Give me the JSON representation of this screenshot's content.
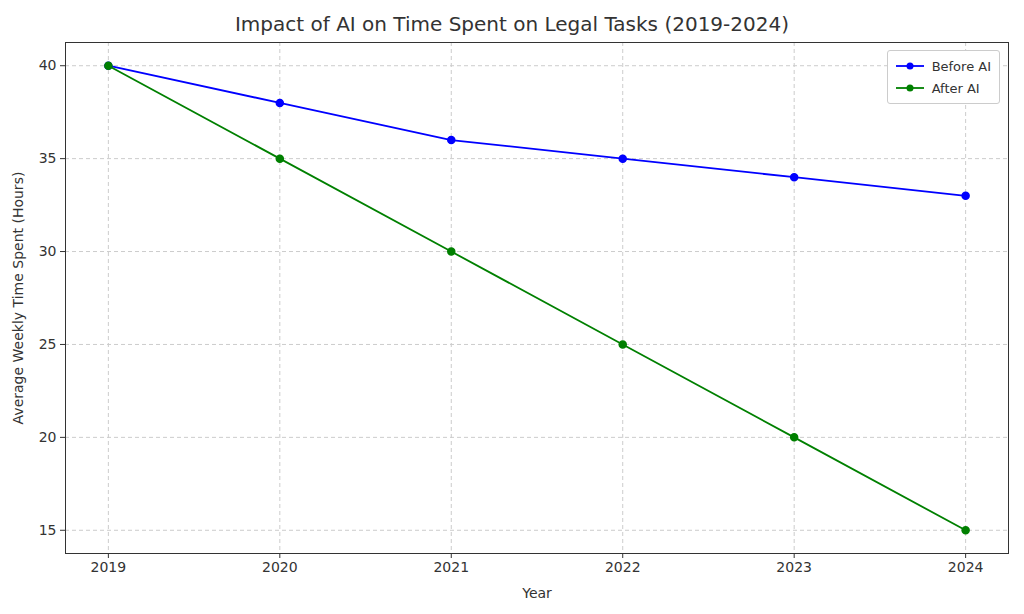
{
  "chart_data": {
    "type": "line",
    "title": "Impact of AI on Time Spent on Legal Tasks (2019-2024)",
    "x_label": "Year",
    "y_label": "Average Weekly Time Spent (Hours)",
    "x": [
      2019,
      2020,
      2021,
      2022,
      2023,
      2024
    ],
    "series": [
      {
        "name": "Before AI",
        "color": "#0000ff",
        "values": [
          40,
          38,
          36,
          35,
          34,
          33
        ]
      },
      {
        "name": "After AI",
        "color": "#008000",
        "values": [
          40,
          35,
          30,
          25,
          20,
          15
        ]
      }
    ],
    "xlim": [
      2018.75,
      2024.25
    ],
    "xticks": [
      2019,
      2020,
      2021,
      2022,
      2023,
      2024
    ],
    "ylim": [
      13.75,
      41.25
    ],
    "yticks": [
      15,
      20,
      25,
      30,
      35,
      40
    ],
    "grid": true,
    "legend": "upper right",
    "marker": "o",
    "line_style": "solid"
  }
}
